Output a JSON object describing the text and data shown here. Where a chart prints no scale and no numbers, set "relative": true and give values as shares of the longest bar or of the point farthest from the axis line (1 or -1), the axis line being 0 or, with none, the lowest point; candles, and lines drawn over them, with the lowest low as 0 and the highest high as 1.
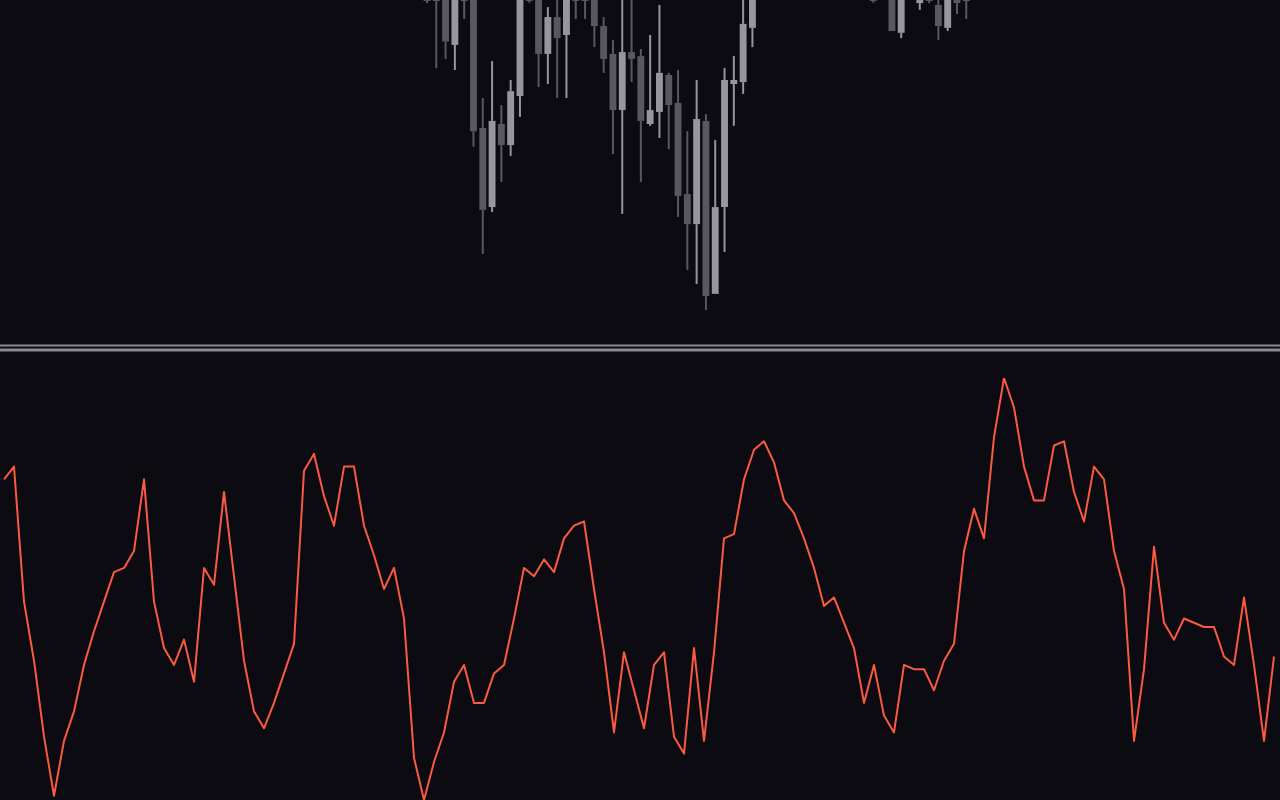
{
  "chart_data": [
    {
      "type": "candlestick",
      "relative": true,
      "categories": [
        null,
        null,
        null,
        null,
        null,
        null,
        null,
        null,
        null,
        null,
        null,
        null,
        null,
        null,
        null,
        null,
        null,
        null,
        null,
        null,
        null,
        null,
        null,
        null,
        null,
        null,
        null,
        null,
        null,
        null,
        null,
        null,
        null,
        null,
        null,
        null,
        null,
        null,
        null,
        null,
        null,
        null,
        null,
        null,
        null,
        null,
        null,
        null,
        null,
        null,
        null,
        null,
        null,
        null,
        null,
        null,
        null,
        null,
        null,
        null,
        null,
        null,
        null,
        null,
        null,
        null,
        null,
        null,
        null,
        null,
        null,
        null,
        null,
        null,
        null,
        null,
        null,
        null,
        null,
        null,
        null,
        null,
        null,
        null,
        null,
        null,
        null,
        null,
        null,
        null,
        null,
        null,
        null,
        null,
        null,
        null,
        null,
        null,
        null,
        null,
        null,
        null,
        null,
        null,
        null,
        null,
        null,
        null,
        null,
        null,
        null,
        null,
        null,
        null,
        null,
        null,
        null,
        null,
        null,
        null,
        null,
        null,
        null,
        null,
        null,
        null,
        null,
        null,
        null,
        null,
        null,
        null,
        null,
        null,
        null,
        null,
        null,
        null
      ],
      "ohlc": [
        null,
        null,
        null,
        null,
        null,
        null,
        null,
        null,
        null,
        null,
        null,
        null,
        null,
        null,
        null,
        null,
        null,
        null,
        null,
        null,
        null,
        null,
        null,
        null,
        null,
        null,
        null,
        null,
        null,
        null,
        null,
        null,
        null,
        null,
        null,
        null,
        null,
        null,
        null,
        null,
        null,
        null,
        null,
        null,
        null,
        null,
        [
          1,
          1,
          0.99,
          1
        ],
        [
          1,
          1,
          0.78,
          1
        ],
        [
          1,
          1,
          0.81,
          0.866
        ],
        [
          0.855,
          1,
          0.774,
          1
        ],
        [
          1,
          1,
          0.939,
          1
        ],
        [
          1,
          1,
          0.527,
          0.577
        ],
        [
          0.587,
          0.684,
          0.181,
          0.323
        ],
        [
          0.332,
          0.803,
          0.316,
          0.61
        ],
        [
          0.6,
          0.661,
          0.413,
          0.532
        ],
        [
          0.532,
          0.742,
          0.497,
          0.706
        ],
        [
          0.69,
          1,
          0.623,
          1
        ],
        [
          1,
          1,
          0.991,
          1
        ],
        [
          1,
          1,
          0.719,
          0.826
        ],
        [
          0.826,
          0.977,
          0.729,
          0.945
        ],
        [
          0.945,
          1,
          0.684,
          0.877
        ],
        [
          0.887,
          1,
          0.684,
          1
        ],
        [
          1,
          1,
          0.939,
          1
        ],
        [
          1,
          1,
          0.939,
          1
        ],
        [
          1,
          1,
          0.848,
          0.916
        ],
        [
          0.916,
          0.945,
          0.765,
          0.81
        ],
        [
          0.826,
          0.871,
          0.503,
          0.645
        ],
        [
          0.645,
          1,
          0.31,
          0.832
        ],
        [
          0.832,
          1,
          0.735,
          0.81
        ],
        [
          0.819,
          0.842,
          0.413,
          0.61
        ],
        [
          0.6,
          0.887,
          0.594,
          0.645
        ],
        [
          0.639,
          0.984,
          0.555,
          0.765
        ],
        [
          0.758,
          0.765,
          0.519,
          0.661
        ],
        [
          0.668,
          0.774,
          0.3,
          0.368
        ],
        [
          0.374,
          0.577,
          0.129,
          0.277
        ],
        [
          0.277,
          0.742,
          0.084,
          0.616
        ],
        [
          0.61,
          0.632,
          0,
          0.045
        ],
        [
          0.052,
          0.548,
          0.052,
          0.332
        ],
        [
          0.332,
          0.781,
          0.187,
          0.742
        ],
        [
          0.729,
          0.819,
          0.594,
          0.742
        ],
        [
          0.735,
          1,
          0.697,
          0.923
        ],
        [
          0.91,
          1,
          0.848,
          1
        ],
        null,
        null,
        null,
        null,
        null,
        null,
        null,
        null,
        null,
        null,
        null,
        null,
        [
          1,
          1,
          0.991,
          1
        ],
        null,
        [
          1,
          1,
          0.9,
          0.9
        ],
        [
          0.894,
          1,
          0.877,
          1
        ],
        null,
        [
          0.99,
          1,
          0.968,
          1
        ],
        [
          1,
          1,
          0.99,
          1
        ],
        [
          0.984,
          1,
          0.871,
          0.916
        ],
        [
          0.91,
          1,
          0.9,
          1
        ],
        [
          1,
          1,
          0.955,
          0.99
        ],
        [
          1,
          1,
          0.939,
          1
        ],
        null,
        null,
        null,
        null,
        null,
        null,
        null,
        null,
        null,
        null,
        null,
        null,
        null,
        null,
        null,
        null,
        null,
        null,
        null,
        null,
        null,
        null,
        null,
        null,
        null,
        null,
        null,
        null,
        null,
        null,
        null,
        null,
        null
      ],
      "colors": [
        null,
        null,
        null,
        null,
        null,
        null,
        null,
        null,
        null,
        null,
        null,
        null,
        null,
        null,
        null,
        null,
        null,
        null,
        null,
        null,
        null,
        null,
        null,
        null,
        null,
        null,
        null,
        null,
        null,
        null,
        null,
        null,
        null,
        null,
        null,
        null,
        null,
        null,
        null,
        null,
        null,
        null,
        null,
        null,
        null,
        null,
        "#58585e",
        "#58585e",
        "#58585e",
        "#9696a0",
        "#58585e",
        "#58585e",
        "#58585e",
        "#9696a0",
        "#58585e",
        "#9696a0",
        "#9696a0",
        "#58585e",
        "#58585e",
        "#9696a0",
        "#58585e",
        "#9696a0",
        "#58585e",
        "#58585e",
        "#58585e",
        "#58585e",
        "#58585e",
        "#9696a0",
        "#58585e",
        "#58585e",
        "#9696a0",
        "#9696a0",
        "#58585e",
        "#58585e",
        "#58585e",
        "#9696a0",
        "#58585e",
        "#9696a0",
        "#9696a0",
        "#9696a0",
        "#9696a0",
        "#9696a0",
        null,
        null,
        null,
        null,
        null,
        null,
        null,
        null,
        null,
        null,
        null,
        null,
        "#58585e",
        null,
        "#58585e",
        "#9696a0",
        null,
        "#9696a0",
        "#58585e",
        "#58585e",
        "#9696a0",
        "#58585e",
        "#58585e",
        null,
        null,
        null,
        null,
        null,
        null,
        null,
        null,
        null,
        null,
        null,
        null,
        null,
        null,
        null,
        null,
        null,
        null,
        null,
        null,
        null,
        null,
        null,
        null,
        null,
        null,
        null,
        null,
        null,
        null,
        null,
        null,
        null
      ]
    },
    {
      "type": "line",
      "relative": true,
      "color": "#fa5a3f",
      "categories": [
        null,
        null,
        null,
        null,
        null,
        null,
        null,
        null,
        null,
        null,
        null,
        null,
        null,
        null,
        null,
        null,
        null,
        null,
        null,
        null,
        null,
        null,
        null,
        null,
        null,
        null,
        null,
        null,
        null,
        null,
        null,
        null,
        null,
        null,
        null,
        null,
        null,
        null,
        null,
        null,
        null,
        null,
        null,
        null,
        null,
        null,
        null,
        null,
        null,
        null,
        null,
        null,
        null,
        null,
        null,
        null,
        null,
        null,
        null,
        null,
        null,
        null,
        null,
        null,
        null,
        null,
        null,
        null,
        null,
        null,
        null,
        null,
        null,
        null,
        null,
        null,
        null,
        null,
        null,
        null,
        null,
        null,
        null,
        null,
        null,
        null,
        null,
        null,
        null,
        null,
        null,
        null,
        null,
        null,
        null,
        null,
        null,
        null,
        null,
        null,
        null,
        null,
        null,
        null,
        null,
        null,
        null,
        null,
        null,
        null,
        null,
        null,
        null,
        null,
        null,
        null,
        null,
        null,
        null,
        null,
        null,
        null,
        null,
        null,
        null,
        null,
        null,
        null
      ],
      "values": [
        0.76,
        0.79,
        0.47,
        0.33,
        0.15,
        0.01,
        0.14,
        0.21,
        0.32,
        0.4,
        0.47,
        0.54,
        0.55,
        0.59,
        0.76,
        0.47,
        0.36,
        0.32,
        0.38,
        0.28,
        0.55,
        0.51,
        0.73,
        0.53,
        0.33,
        0.21,
        0.17,
        0.23,
        0.3,
        0.37,
        0.78,
        0.82,
        0.72,
        0.65,
        0.79,
        0.79,
        0.65,
        0.58,
        0.5,
        0.55,
        0.43,
        0.1,
        0,
        0.09,
        0.16,
        0.28,
        0.32,
        0.23,
        0.23,
        0.3,
        0.32,
        0.43,
        0.55,
        0.53,
        0.57,
        0.54,
        0.62,
        0.65,
        0.66,
        0.5,
        0.35,
        0.16,
        0.35,
        0.26,
        0.17,
        0.32,
        0.35,
        0.15,
        0.11,
        0.36,
        0.14,
        0.35,
        0.62,
        0.63,
        0.76,
        0.83,
        0.85,
        0.8,
        0.71,
        0.68,
        0.62,
        0.55,
        0.46,
        0.48,
        0.42,
        0.36,
        0.23,
        0.32,
        0.2,
        0.16,
        0.32,
        0.31,
        0.31,
        0.26,
        0.33,
        0.37,
        0.59,
        0.69,
        0.62,
        0.86,
        1,
        0.93,
        0.79,
        0.71,
        0.71,
        0.84,
        0.85,
        0.73,
        0.66,
        0.79,
        0.76,
        0.59,
        0.5,
        0.14,
        0.31,
        0.6,
        0.42,
        0.38,
        0.43,
        0.42,
        0.41,
        0.41,
        0.34,
        0.32,
        0.48,
        0.32,
        0.14,
        0.34
      ]
    }
  ]
}
